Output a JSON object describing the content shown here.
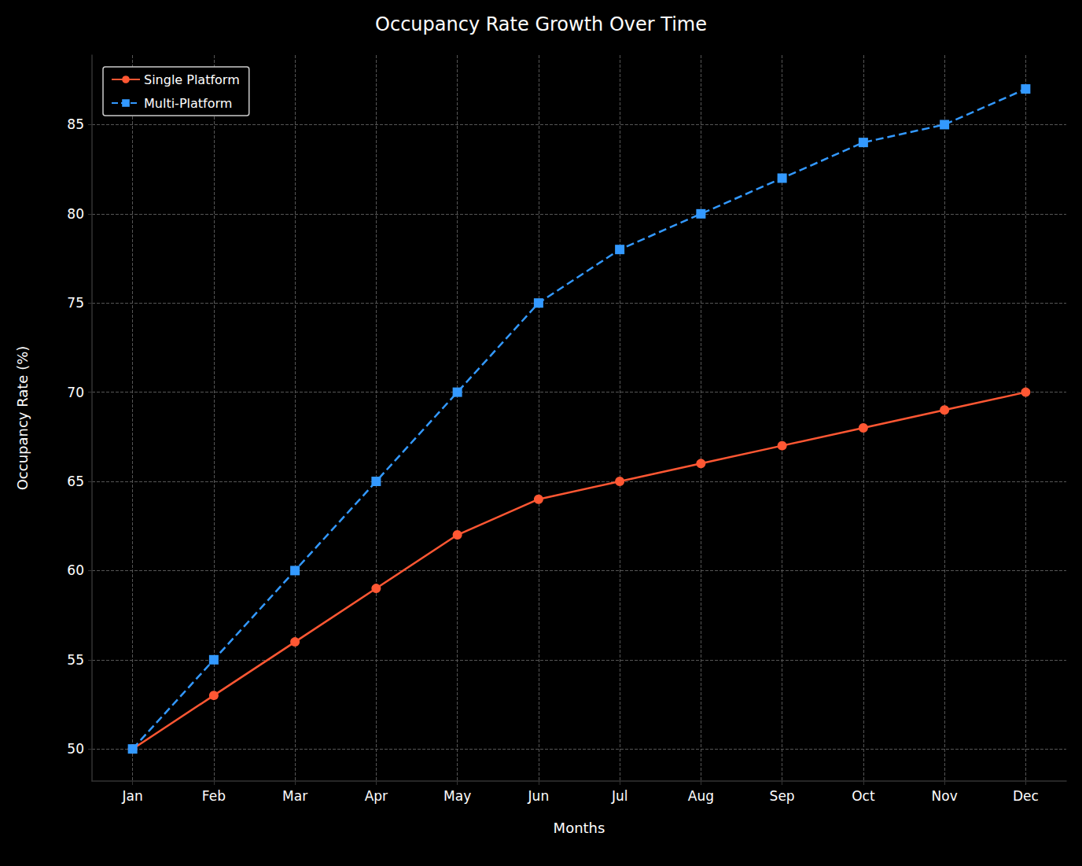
{
  "chart_data": {
    "type": "line",
    "title": "Occupancy Rate Growth Over Time",
    "x_label": "Months",
    "y_label": "Occupancy Rate (%)",
    "categories": [
      "Jan",
      "Feb",
      "Mar",
      "Apr",
      "May",
      "Jun",
      "Jul",
      "Aug",
      "Sep",
      "Oct",
      "Nov",
      "Dec"
    ],
    "series": [
      {
        "name": "Single Platform",
        "color": "#ff5733",
        "marker": "circle",
        "line_style": "solid",
        "values": [
          50,
          53,
          56,
          59,
          62,
          64,
          65,
          66,
          67,
          68,
          69,
          70
        ]
      },
      {
        "name": "Multi-Platform",
        "color": "#3399ff",
        "marker": "square",
        "line_style": "dashed",
        "values": [
          50,
          55,
          60,
          65,
          70,
          75,
          78,
          80,
          82,
          84,
          85,
          87
        ]
      }
    ],
    "ylim": [
      48.2,
      88.9
    ],
    "yticks": [
      50,
      55,
      60,
      65,
      70,
      75,
      80,
      85
    ],
    "grid": true,
    "legend": "upper left"
  }
}
